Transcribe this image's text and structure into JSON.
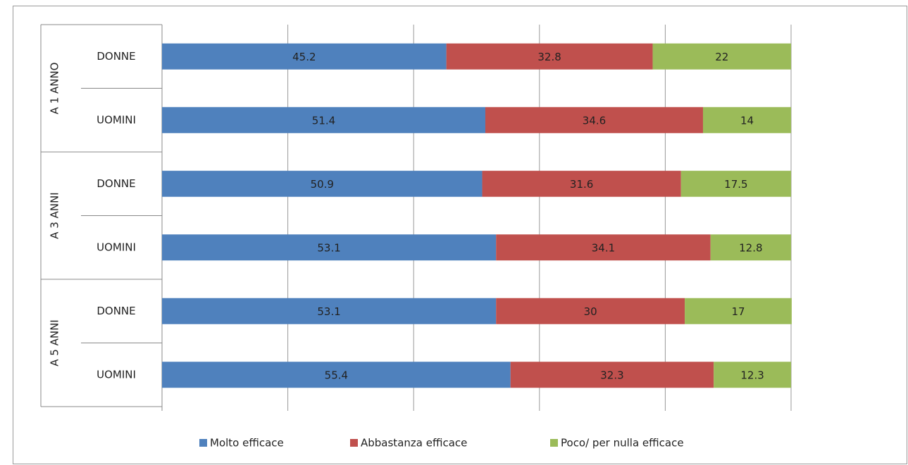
{
  "chart_data": {
    "type": "stacked-bar-horizontal",
    "groups": [
      "A 1 ANNO",
      "A 3 ANNI",
      "A 5 ANNI"
    ],
    "categories": [
      "DONNE",
      "UOMINI",
      "DONNE",
      "UOMINI",
      "DONNE",
      "UOMINI"
    ],
    "series": [
      {
        "name": "Molto efficace",
        "color": "#4f81bd",
        "values": [
          45.2,
          51.4,
          50.9,
          53.1,
          53.1,
          55.4
        ]
      },
      {
        "name": "Abbastanza efficace",
        "color": "#c0504d",
        "values": [
          32.8,
          34.6,
          31.6,
          34.1,
          30,
          32.3
        ]
      },
      {
        "name": "Poco/ per nulla efficace",
        "color": "#9bbb59",
        "values": [
          22,
          14,
          17.5,
          12.8,
          17,
          12.3
        ]
      }
    ],
    "xlim": [
      0,
      100
    ],
    "xticks": [
      0,
      20,
      40,
      60,
      80,
      100
    ],
    "grid": true,
    "legend": "bottom"
  }
}
